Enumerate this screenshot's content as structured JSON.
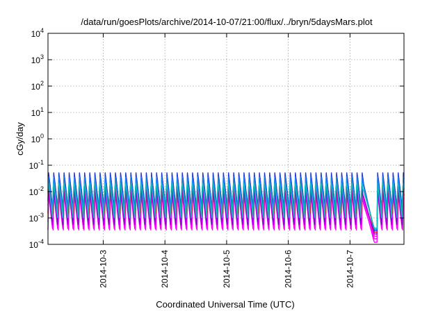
{
  "chart_data": {
    "type": "line",
    "title": "/data/run/goesPlots/archive/2014-10-07/21:00/flux/../bryn/5daysMars.plot",
    "xlabel": "Coordinated Universal Time (UTC)",
    "ylabel": "cGy/day",
    "yscale": "log",
    "ylim": [
      0.0001,
      10000
    ],
    "xlim": [
      "2014-10-02 02:30",
      "2014-10-07 21:00"
    ],
    "grid": true,
    "y_ticks": [
      {
        "value": 0.0001,
        "base": "10",
        "exp": "-4"
      },
      {
        "value": 0.001,
        "base": "10",
        "exp": "-3"
      },
      {
        "value": 0.01,
        "base": "10",
        "exp": "-2"
      },
      {
        "value": 0.1,
        "base": "10",
        "exp": "-1"
      },
      {
        "value": 1,
        "base": "10",
        "exp": "0"
      },
      {
        "value": 10,
        "base": "10",
        "exp": "1"
      },
      {
        "value": 100,
        "base": "10",
        "exp": "2"
      },
      {
        "value": 1000,
        "base": "10",
        "exp": "3"
      },
      {
        "value": 10000,
        "base": "10",
        "exp": "4"
      }
    ],
    "x_ticks": [
      {
        "value": "2014-10-03",
        "label": "2014-10-3"
      },
      {
        "value": "2014-10-04",
        "label": "2014-10-4"
      },
      {
        "value": "2014-10-05",
        "label": "2014-10-5"
      },
      {
        "value": "2014-10-06",
        "label": "2014-10-6"
      },
      {
        "value": "2014-10-07",
        "label": "2014-10-7"
      }
    ],
    "oscillation": {
      "period_hours": 2,
      "gap_start": "2014-10-07 05:10",
      "gap_end": "2014-10-07 10:30",
      "gap_low_value": 0.00012
    },
    "series": [
      {
        "color": "#ff00ff",
        "peak": 0.012,
        "trough": 0.00035
      },
      {
        "color": "#ff00ff",
        "peak": 0.009,
        "trough": 0.00028
      },
      {
        "color": "#ff00ff",
        "peak": 0.015,
        "trough": 0.00045
      },
      {
        "color": "#8800cc",
        "peak": 0.018,
        "trough": 0.00055
      },
      {
        "color": "#ee1111",
        "peak": 0.05,
        "trough": 0.0015
      },
      {
        "color": "#2233dd",
        "peak": 0.055,
        "trough": 0.0018
      },
      {
        "color": "#1188ee",
        "peak": 0.045,
        "trough": 0.0014
      },
      {
        "color": "#11bbbb",
        "peak": 0.03,
        "trough": 0.001
      }
    ]
  }
}
